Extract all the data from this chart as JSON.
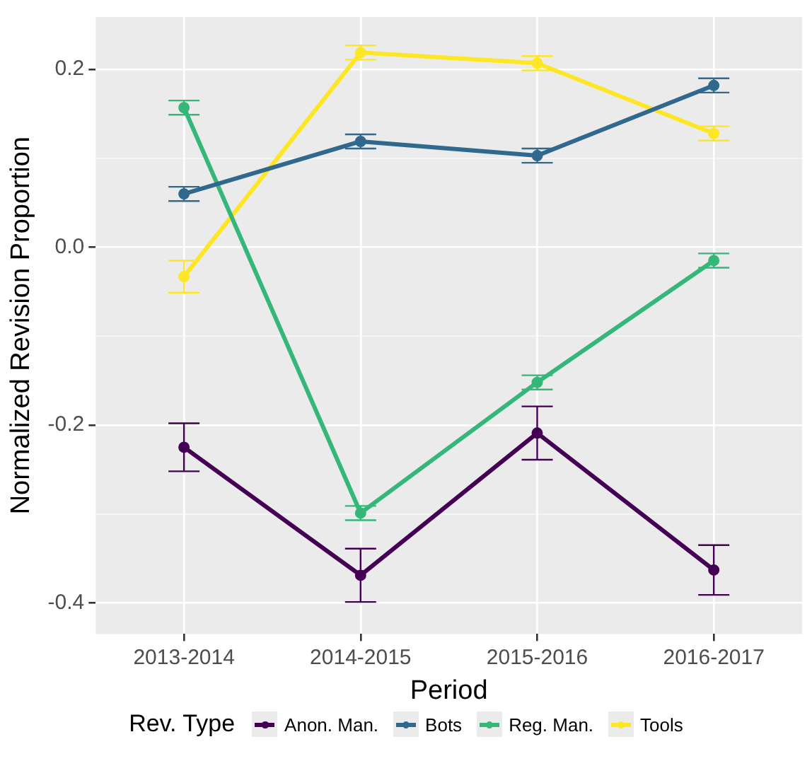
{
  "chart_data": {
    "type": "line",
    "xlabel": "Period",
    "ylabel": "Normalized Revision Proportion",
    "legend_title": "Rev. Type",
    "legend": "bottom",
    "grid": true,
    "marker": "circle",
    "line_style": "solid",
    "categories": [
      "2013-2014",
      "2014-2015",
      "2015-2016",
      "2016-2017"
    ],
    "ylim": [
      -0.435,
      0.259
    ],
    "yticks": [
      {
        "value": -0.4,
        "label": "-0.4"
      },
      {
        "value": -0.3,
        "label": null
      },
      {
        "value": -0.2,
        "label": "-0.2"
      },
      {
        "value": -0.1,
        "label": null
      },
      {
        "value": 0,
        "label": "0.0"
      },
      {
        "value": 0.1,
        "label": null
      },
      {
        "value": 0.2,
        "label": "0.2"
      }
    ],
    "series": [
      {
        "name": "Anon. Man.",
        "color": "#440154",
        "values": [
          -0.225,
          -0.369,
          -0.209,
          -0.363
        ],
        "errors": [
          0.027,
          0.03,
          0.03,
          0.028
        ]
      },
      {
        "name": "Bots",
        "color": "#31688e",
        "values": [
          0.06,
          0.119,
          0.103,
          0.182
        ],
        "errors": [
          0.008,
          0.008,
          0.008,
          0.008
        ]
      },
      {
        "name": "Reg. Man.",
        "color": "#35b779",
        "values": [
          0.157,
          -0.299,
          -0.152,
          -0.015
        ],
        "errors": [
          0.008,
          0.008,
          0.008,
          0.008
        ]
      },
      {
        "name": "Tools",
        "color": "#fde725",
        "values": [
          -0.033,
          0.219,
          0.207,
          0.128
        ],
        "errors": [
          0.018,
          0.008,
          0.008,
          0.008
        ]
      }
    ]
  }
}
